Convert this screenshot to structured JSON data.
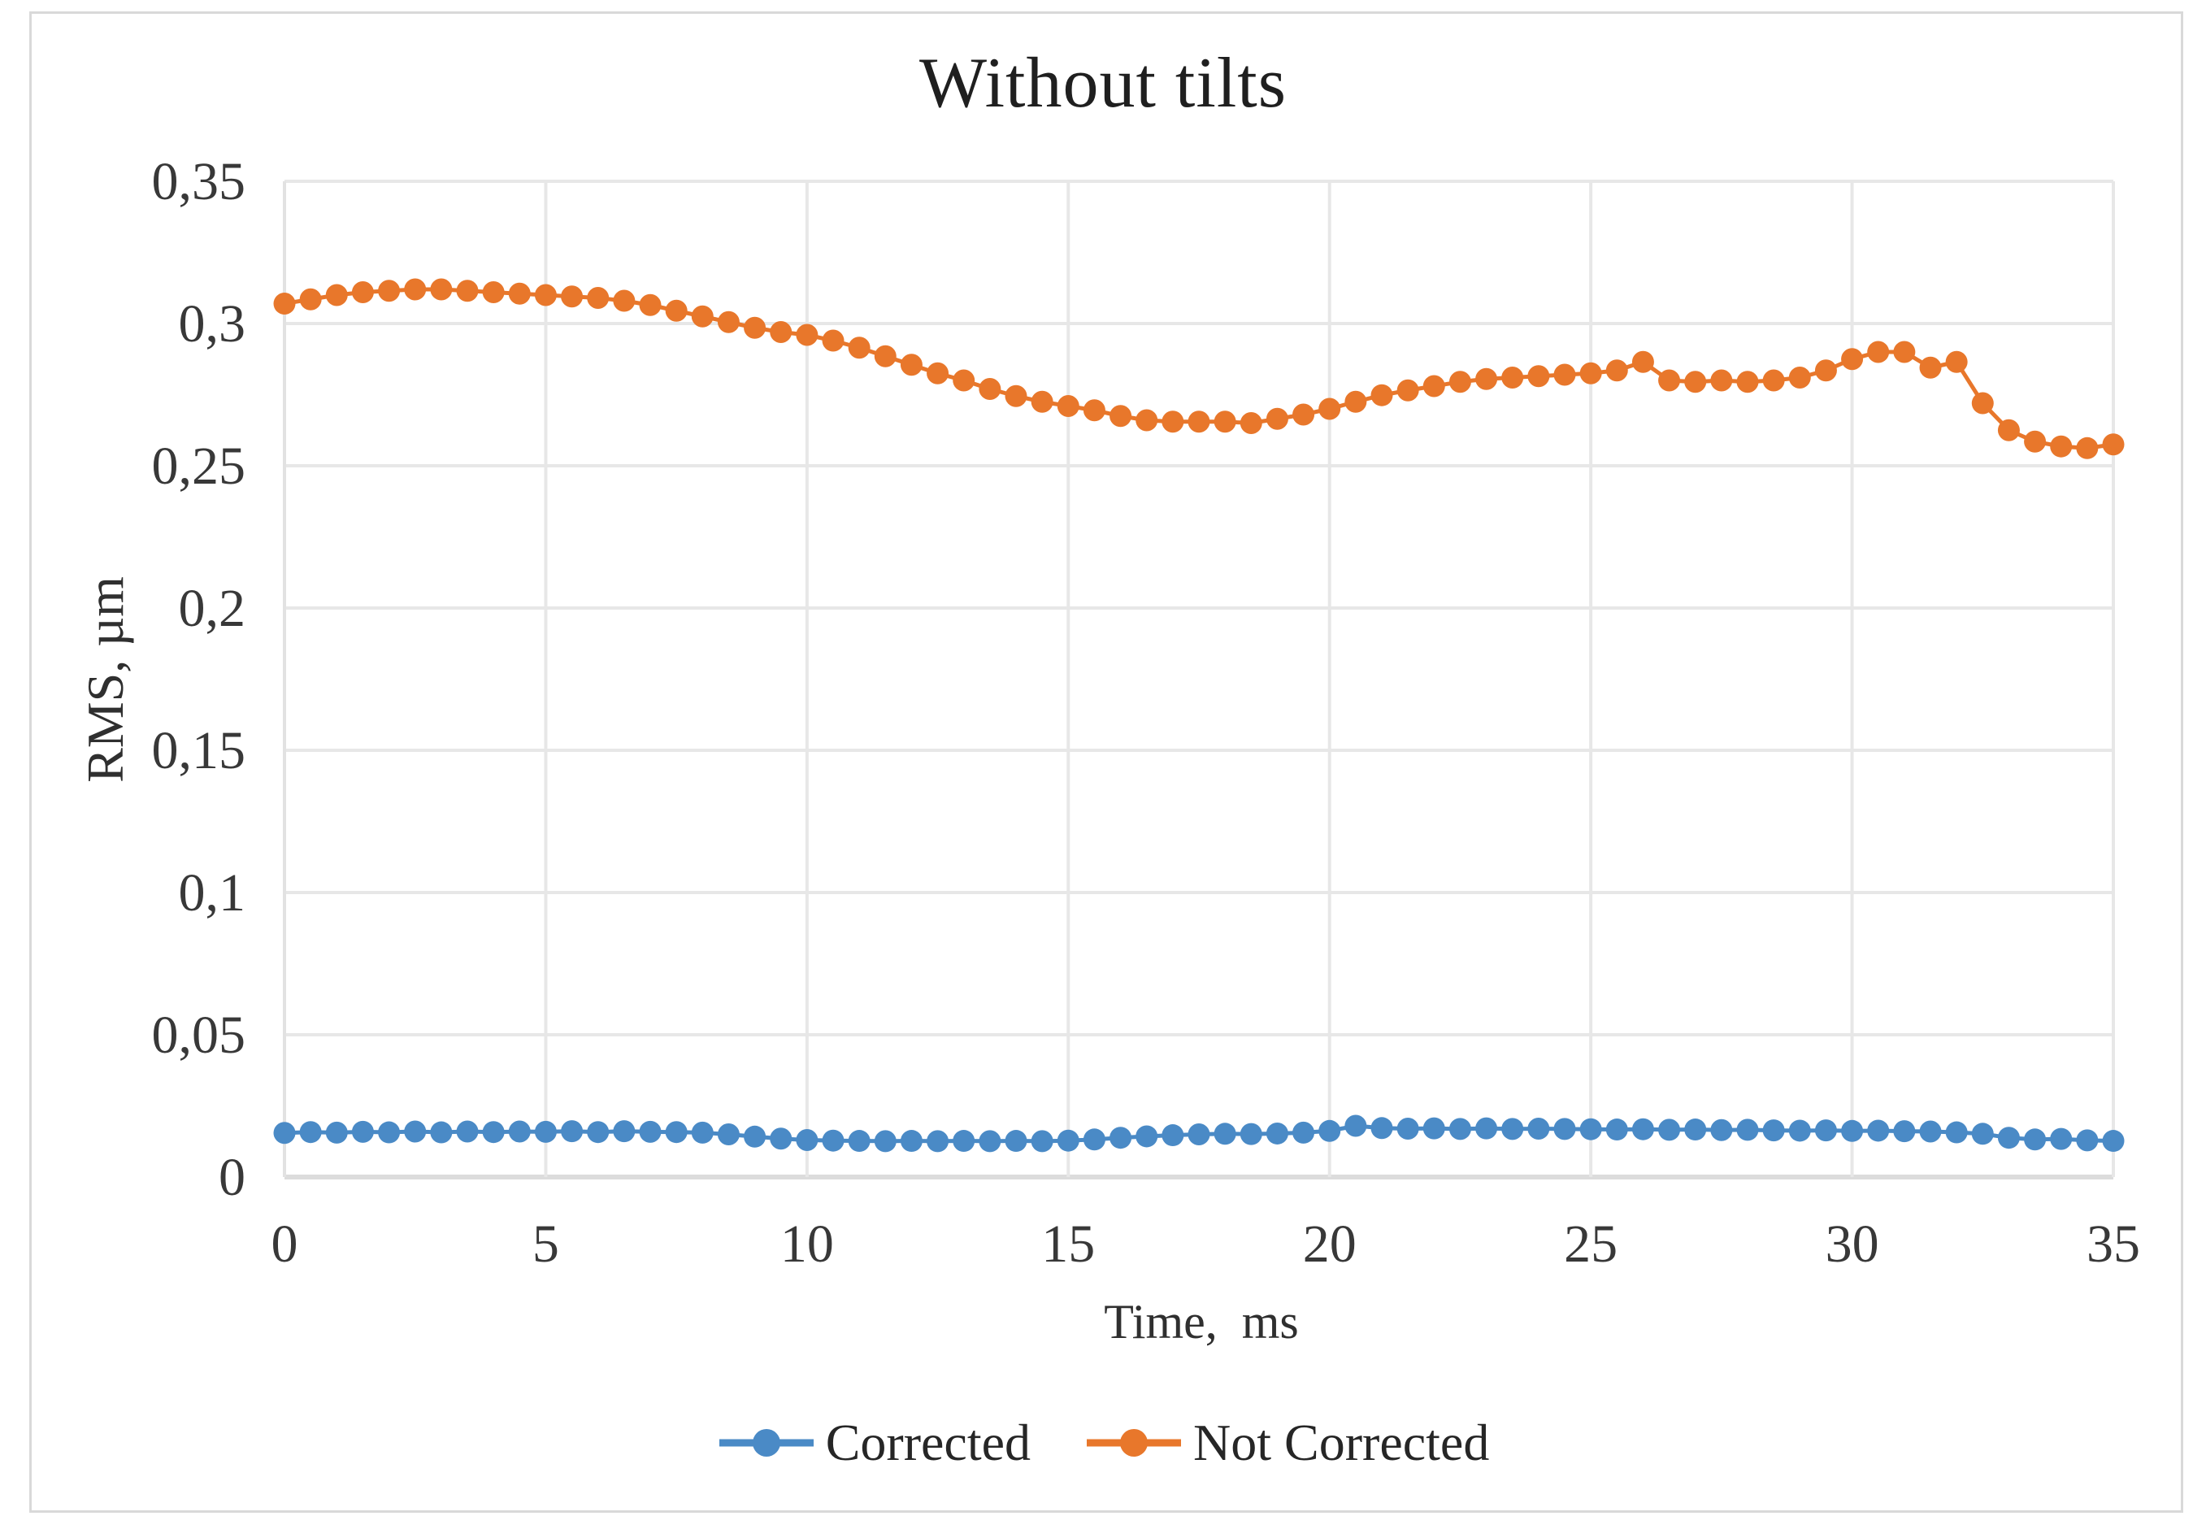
{
  "figure": {
    "title": "Without tilts",
    "x_axis": {
      "label": "Time,  ms",
      "tick_values": [
        0,
        5,
        10,
        15,
        20,
        25,
        30,
        35
      ],
      "tick_labels": [
        "0",
        "5",
        "10",
        "15",
        "20",
        "25",
        "30",
        "35"
      ]
    },
    "y_axis": {
      "label": "RMS, µm",
      "tick_values": [
        0,
        0.05,
        0.1,
        0.15,
        0.2,
        0.25,
        0.3,
        0.35
      ],
      "tick_labels": [
        "0",
        "0,05",
        "0,1",
        "0,15",
        "0,2",
        "0,25",
        "0,3",
        "0,35"
      ]
    },
    "legend": [
      {
        "name": "Corrected",
        "color": "#4a8ac6"
      },
      {
        "name": "Not Corrected",
        "color": "#e8772b"
      }
    ]
  },
  "colors": {
    "background": "#ffffff",
    "frame": "#d9d9d9",
    "gridline": "#e7e7e7",
    "axis_line_bottom": "#dcdcdc",
    "axis_line_left": "#e2e2e2",
    "tick_text": "#383838",
    "title_text": "#1f1f1f",
    "series_blue": "#4a8ac6",
    "series_orange": "#e8772b"
  },
  "chart_data": {
    "type": "line",
    "title": "Without tilts",
    "xlabel": "Time,  ms",
    "ylabel": "RMS, µm",
    "xlim": [
      0,
      35
    ],
    "ylim": [
      0,
      0.35
    ],
    "x_step": 0.5,
    "grid": true,
    "legend_position": "bottom",
    "marker": "circle",
    "series": [
      {
        "name": "Corrected",
        "color": "#4a8ac6",
        "values": [
          0.0155,
          0.0158,
          0.0156,
          0.0159,
          0.0157,
          0.016,
          0.0157,
          0.016,
          0.0158,
          0.016,
          0.0159,
          0.0161,
          0.0158,
          0.0161,
          0.0159,
          0.0158,
          0.0156,
          0.015,
          0.0142,
          0.0135,
          0.013,
          0.0128,
          0.0127,
          0.0126,
          0.0127,
          0.0126,
          0.0127,
          0.0126,
          0.0127,
          0.0126,
          0.0128,
          0.0132,
          0.0138,
          0.0143,
          0.0147,
          0.015,
          0.0152,
          0.0151,
          0.0153,
          0.0156,
          0.0162,
          0.018,
          0.0172,
          0.017,
          0.0171,
          0.0169,
          0.0171,
          0.0169,
          0.017,
          0.0169,
          0.0168,
          0.0167,
          0.0168,
          0.0166,
          0.0167,
          0.0165,
          0.0166,
          0.0164,
          0.0163,
          0.0164,
          0.0162,
          0.0163,
          0.0161,
          0.016,
          0.0157,
          0.0152,
          0.0138,
          0.0132,
          0.0134,
          0.0129,
          0.0127
        ]
      },
      {
        "name": "Not Corrected",
        "color": "#e8772b",
        "values": [
          0.307,
          0.3085,
          0.31,
          0.311,
          0.3115,
          0.312,
          0.312,
          0.3115,
          0.311,
          0.3105,
          0.31,
          0.3095,
          0.309,
          0.308,
          0.3065,
          0.3045,
          0.3025,
          0.3005,
          0.2985,
          0.297,
          0.296,
          0.294,
          0.2915,
          0.2885,
          0.2855,
          0.2825,
          0.28,
          0.277,
          0.2745,
          0.2725,
          0.271,
          0.2695,
          0.2675,
          0.266,
          0.2655,
          0.2655,
          0.2655,
          0.265,
          0.2665,
          0.268,
          0.27,
          0.2725,
          0.2748,
          0.2765,
          0.278,
          0.2795,
          0.2805,
          0.281,
          0.2815,
          0.282,
          0.2825,
          0.2835,
          0.2865,
          0.28,
          0.2795,
          0.28,
          0.2795,
          0.28,
          0.281,
          0.2835,
          0.2875,
          0.29,
          0.29,
          0.2845,
          0.2865,
          0.272,
          0.2625,
          0.2585,
          0.2568,
          0.2562,
          0.2575
        ]
      }
    ]
  }
}
